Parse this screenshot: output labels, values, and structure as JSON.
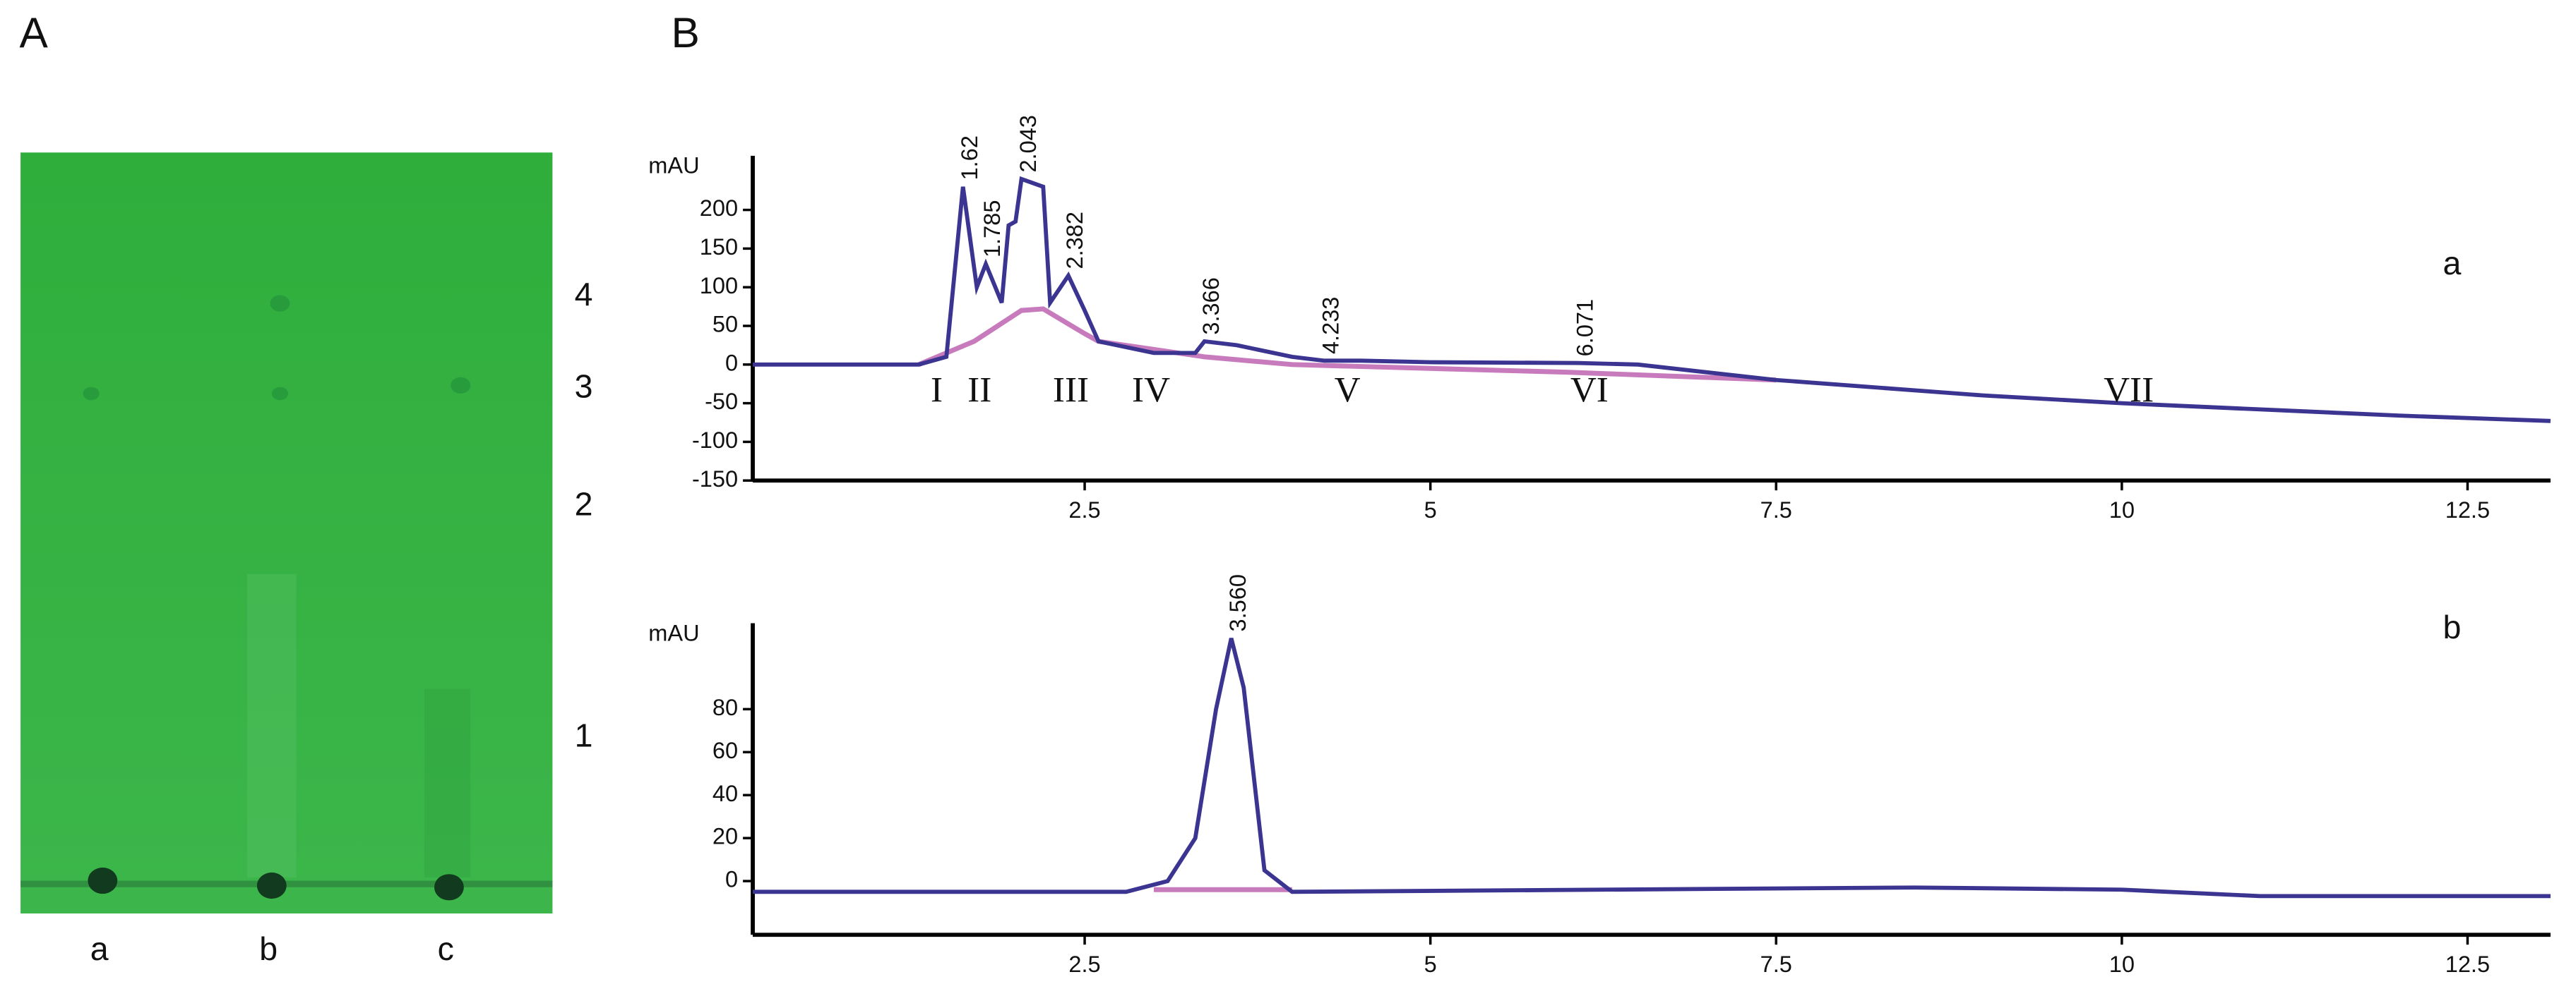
{
  "figure": {
    "panel_a_label": "A",
    "panel_b_label": "B",
    "plate": {
      "lanes": [
        "a",
        "b",
        "c"
      ],
      "spots": [
        "4",
        "3",
        "2",
        "1"
      ]
    }
  },
  "chart_data": [
    {
      "type": "line",
      "label": "a",
      "y_label": "mAU",
      "xlim": [
        0.1,
        13.1
      ],
      "ylim": [
        -150,
        270
      ],
      "xticks": [
        2.5,
        5,
        7.5,
        10,
        12.5
      ],
      "yticks": [
        -150,
        -100,
        -50,
        0,
        50,
        100,
        150,
        200
      ],
      "peak_labels": [
        "1.62",
        "1.785",
        "2.043",
        "2.382",
        "3.366",
        "4.233",
        "6.071"
      ],
      "region_labels": [
        "I",
        "II",
        "III",
        "IV",
        "V",
        "VI",
        "VII"
      ],
      "series": [
        {
          "color": "#3b3591",
          "x": [
            0.1,
            1.3,
            1.5,
            1.62,
            1.72,
            1.785,
            1.9,
            1.95,
            2.0,
            2.043,
            2.2,
            2.25,
            2.382,
            2.5,
            2.6,
            3.0,
            3.3,
            3.366,
            3.6,
            4.0,
            4.233,
            4.5,
            5,
            6.071,
            6.5,
            7.5,
            9,
            10,
            11,
            12,
            13.1
          ],
          "values": [
            0,
            0,
            10,
            230,
            100,
            130,
            80,
            180,
            185,
            240,
            230,
            80,
            115,
            70,
            30,
            15,
            15,
            30,
            25,
            10,
            5,
            5,
            3,
            2,
            0,
            -20,
            -40,
            -50,
            -58,
            -66,
            -73
          ]
        },
        {
          "color": "#c77bbd",
          "x": [
            1.3,
            1.7,
            2.043,
            2.2,
            2.5,
            2.6,
            3.366,
            4.0,
            6.0,
            7.5
          ],
          "values": [
            0,
            30,
            70,
            72,
            40,
            30,
            10,
            0,
            -10,
            -20
          ]
        }
      ]
    },
    {
      "type": "line",
      "label": "b",
      "y_label": "mAU",
      "xlim": [
        0.1,
        13.1
      ],
      "ylim": [
        -25,
        120
      ],
      "xticks": [
        2.5,
        5,
        7.5,
        10,
        12.5
      ],
      "yticks": [
        0,
        20,
        40,
        60,
        80
      ],
      "peak_labels": [
        "3.560"
      ],
      "series": [
        {
          "color": "#3b3591",
          "x": [
            0.1,
            2.8,
            3.1,
            3.3,
            3.45,
            3.56,
            3.65,
            3.8,
            4.0,
            8.5,
            10,
            11,
            13.1
          ],
          "values": [
            -5,
            -5,
            0,
            20,
            80,
            113,
            90,
            5,
            -5,
            -3,
            -4,
            -7,
            -7
          ]
        },
        {
          "color": "#c77bbd",
          "x": [
            3.0,
            4.0
          ],
          "values": [
            -4,
            -4
          ]
        }
      ]
    }
  ]
}
